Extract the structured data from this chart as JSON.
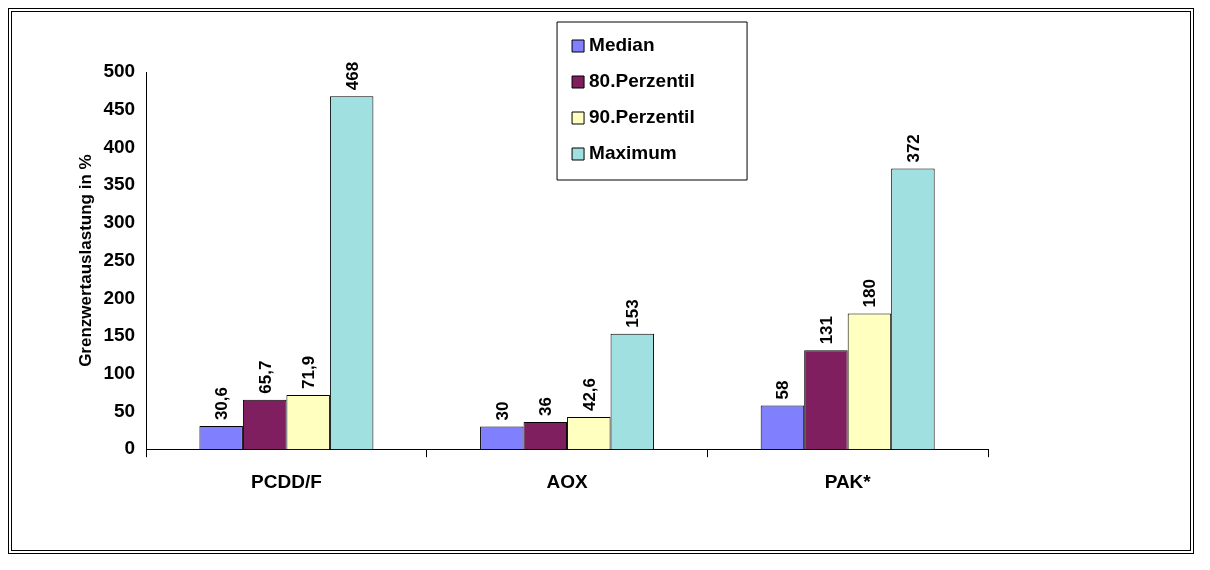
{
  "chart_data": {
    "type": "bar",
    "ylabel": "Grenzwertauslastung in %",
    "categories": [
      "PCDD/F",
      "AOX",
      "PAK*"
    ],
    "series": [
      {
        "name": "Median",
        "color": "#8080ff",
        "values": [
          30.6,
          30,
          58
        ],
        "value_labels": [
          "30,6",
          "30",
          "58"
        ]
      },
      {
        "name": "80.Perzentil",
        "color": "#801f5f",
        "values": [
          65.7,
          36,
          131
        ],
        "value_labels": [
          "65,7",
          "36",
          "131"
        ]
      },
      {
        "name": "90.Perzentil",
        "color": "#ffffc0",
        "values": [
          71.9,
          42.6,
          180
        ],
        "value_labels": [
          "71,9",
          "42,6",
          "180"
        ]
      },
      {
        "name": "Maximum",
        "color": "#a0e0e0",
        "values": [
          468,
          153,
          372
        ],
        "value_labels": [
          "468",
          "153",
          "372"
        ]
      }
    ],
    "ylim": [
      0,
      500
    ],
    "yticks": [
      0,
      50,
      100,
      150,
      200,
      250,
      300,
      350,
      400,
      450,
      500
    ],
    "grid": false,
    "legend": "top"
  }
}
